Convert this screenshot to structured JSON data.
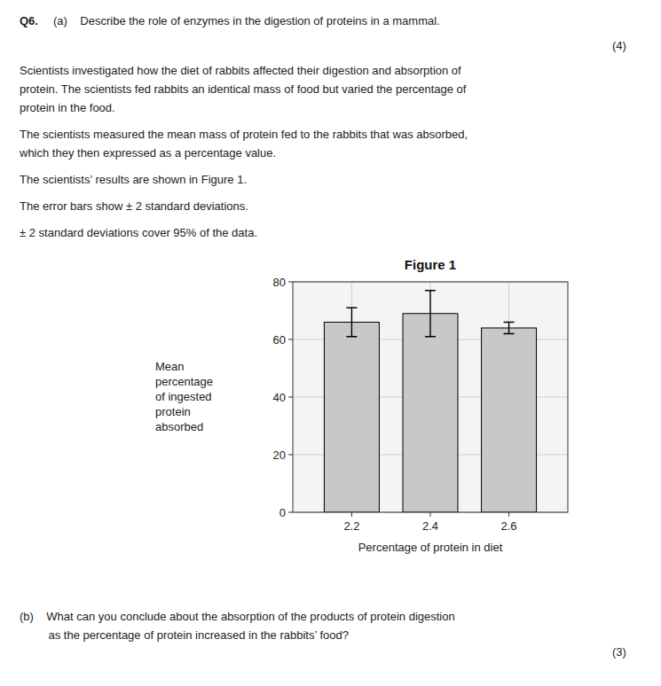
{
  "chart_data": {
    "type": "bar",
    "title": "Figure 1",
    "x": [
      2.2,
      2.4,
      2.6
    ],
    "values": [
      66,
      69,
      64
    ],
    "errors": [
      5,
      8,
      2
    ],
    "color": "#c8c8c8",
    "xlabel": "Percentage of protein in diet",
    "ylabel": "Mean\npercentage\nof ingested\nprotein\nabsorbed",
    "xlim": [
      2.05,
      2.75
    ],
    "xticks": [
      2.2,
      2.4,
      2.6
    ],
    "ylim": [
      0,
      80
    ],
    "yticks": [
      0,
      20,
      40,
      60,
      80
    ],
    "grid": true,
    "annotations": [
      "Q6.",
      "(a)    Describe the role of enzymes in the digestion of proteins in a mammal.",
      "(4)",
      "Scientists investigated how the diet of rabbits affected their digestion and absorption of",
      "protein. The scientists fed rabbits an identical mass of food but varied the percentage of",
      "protein in the food.",
      "The scientists measured the mean mass of protein fed to the rabbits that was absorbed,",
      "which they then expressed as a percentage value.",
      "The scientists’ results are shown in Figure 1.",
      "The error bars show ± 2 standard deviations.",
      "± 2 standard deviations cover 95% of the data.",
      "(b)    What can you conclude about the absorption of the products of protein digestion",
      "         as the percentage of protein increased in the rabbits’ food?",
      "(3)"
    ]
  }
}
